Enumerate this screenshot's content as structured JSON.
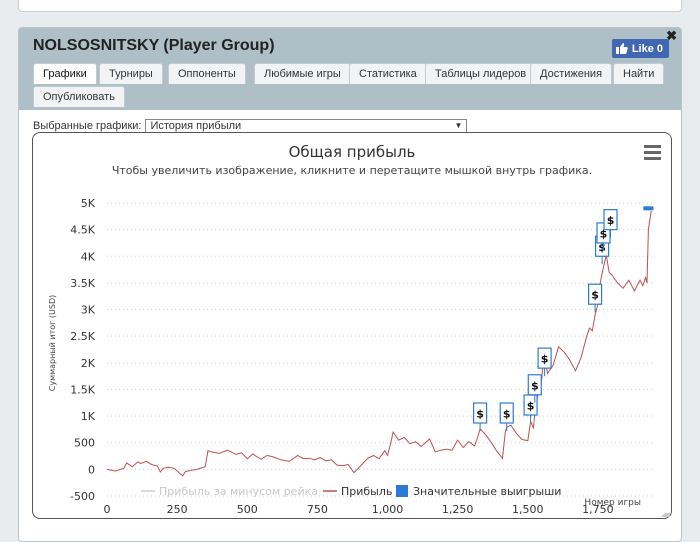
{
  "panel": {
    "title": "NOLSOSNITSKY (Player Group)",
    "close": "✖",
    "like_label": "Like 0"
  },
  "tabs": [
    {
      "label": "Графики",
      "active": true
    },
    {
      "label": "Турниры"
    },
    {
      "label": "Оппоненты"
    },
    {
      "label": "Любимые игры"
    },
    {
      "label": "Статистика"
    },
    {
      "label": "Таблицы лидеров"
    },
    {
      "label": "Достижения"
    },
    {
      "label": "Найти"
    },
    {
      "label": "Опубликовать"
    }
  ],
  "selector": {
    "label": "Выбранные графики:",
    "value": "История прибыли",
    "arrow_icon": "caret-down-icon"
  },
  "chart_data": {
    "type": "line",
    "title": "Общая прибыль",
    "subtitle": "Чтобы увеличить изображение, кликните и перетащите мышкой внутрь графика.",
    "xlabel": "Номер игры",
    "ylabel": "Суммарный итог (USD)",
    "xlim": [
      0,
      1950
    ],
    "ylim": [
      -500,
      5000
    ],
    "x_ticks": [
      0,
      250,
      500,
      750,
      1000,
      1250,
      1500,
      1750
    ],
    "x_tick_labels": [
      "0",
      "250",
      "500",
      "750",
      "1,000",
      "1,250",
      "1,500",
      "1,750"
    ],
    "y_ticks": [
      -500,
      0,
      500,
      1000,
      1500,
      2000,
      2500,
      3000,
      3500,
      4000,
      4500,
      5000
    ],
    "y_tick_labels": [
      "-500",
      "0",
      "500",
      "1K",
      "1.5K",
      "2K",
      "2.5K",
      "3K",
      "3.5K",
      "4K",
      "4.5K",
      "5K"
    ],
    "grid": true,
    "legend_position": "bottom",
    "legend": [
      {
        "name": "Прибыль за минусом рейка",
        "color": "#cccccc",
        "style": "line",
        "muted": true
      },
      {
        "name": "Прибыль",
        "color": "#c0504d",
        "style": "line"
      },
      {
        "name": "Значительные выигрыши",
        "color": "#2b7bd6",
        "style": "square"
      }
    ],
    "series": [
      {
        "name": "Прибыль",
        "color": "#c0504d",
        "x": [
          0,
          30,
          60,
          70,
          90,
          110,
          120,
          140,
          160,
          180,
          190,
          200,
          220,
          240,
          260,
          270,
          280,
          300,
          320,
          350,
          360,
          370,
          400,
          430,
          460,
          480,
          500,
          520,
          530,
          550,
          570,
          590,
          620,
          650,
          680,
          700,
          720,
          740,
          760,
          780,
          800,
          820,
          840,
          860,
          880,
          900,
          910,
          930,
          950,
          970,
          990,
          1000,
          1010,
          1020,
          1040,
          1060,
          1080,
          1100,
          1120,
          1150,
          1170,
          1190,
          1210,
          1230,
          1250,
          1270,
          1290,
          1310,
          1320,
          1330,
          1350,
          1370,
          1390,
          1410,
          1420,
          1425,
          1440,
          1460,
          1480,
          1500,
          1510,
          1520,
          1525,
          1530,
          1540,
          1550,
          1555,
          1560,
          1570,
          1590,
          1610,
          1630,
          1650,
          1670,
          1690,
          1710,
          1720,
          1730,
          1740,
          1750,
          1760,
          1770,
          1780,
          1790,
          1800,
          1820,
          1840,
          1860,
          1880,
          1900,
          1910,
          1920,
          1925,
          1930,
          1940
        ],
        "y": [
          0,
          -30,
          20,
          120,
          50,
          140,
          110,
          150,
          90,
          60,
          -50,
          20,
          40,
          20,
          -80,
          -120,
          -40,
          -20,
          0,
          50,
          350,
          330,
          300,
          360,
          280,
          310,
          200,
          290,
          250,
          190,
          260,
          240,
          180,
          150,
          260,
          200,
          210,
          180,
          220,
          160,
          180,
          80,
          70,
          90,
          -60,
          40,
          100,
          210,
          260,
          200,
          350,
          260,
          460,
          700,
          550,
          600,
          480,
          520,
          430,
          570,
          330,
          360,
          380,
          360,
          550,
          410,
          520,
          440,
          580,
          760,
          650,
          500,
          340,
          210,
          700,
          790,
          830,
          670,
          560,
          540,
          900,
          780,
          1040,
          1250,
          1480,
          1700,
          2080,
          2200,
          1800,
          1950,
          2300,
          2200,
          2050,
          1850,
          2100,
          2500,
          2650,
          2600,
          2900,
          3100,
          3550,
          3800,
          4020,
          3700,
          3650,
          3500,
          3400,
          3550,
          3350,
          3550,
          3450,
          3600,
          3500,
          4500,
          4850
        ]
      }
    ],
    "big_wins": [
      {
        "x": 1330,
        "y": 720,
        "label": "$"
      },
      {
        "x": 1425,
        "y": 720,
        "label": "$"
      },
      {
        "x": 1510,
        "y": 870,
        "label": "$"
      },
      {
        "x": 1525,
        "y": 1250,
        "label": "$"
      },
      {
        "x": 1560,
        "y": 1750,
        "label": "$"
      },
      {
        "x": 1740,
        "y": 2950,
        "label": "$"
      },
      {
        "x": 1765,
        "y": 3850,
        "label": "$"
      },
      {
        "x": 1770,
        "y": 4100,
        "label": "$"
      },
      {
        "x": 1795,
        "y": 4350,
        "label": "$"
      },
      {
        "x": 1930,
        "y": 4900,
        "label": ""
      }
    ]
  }
}
